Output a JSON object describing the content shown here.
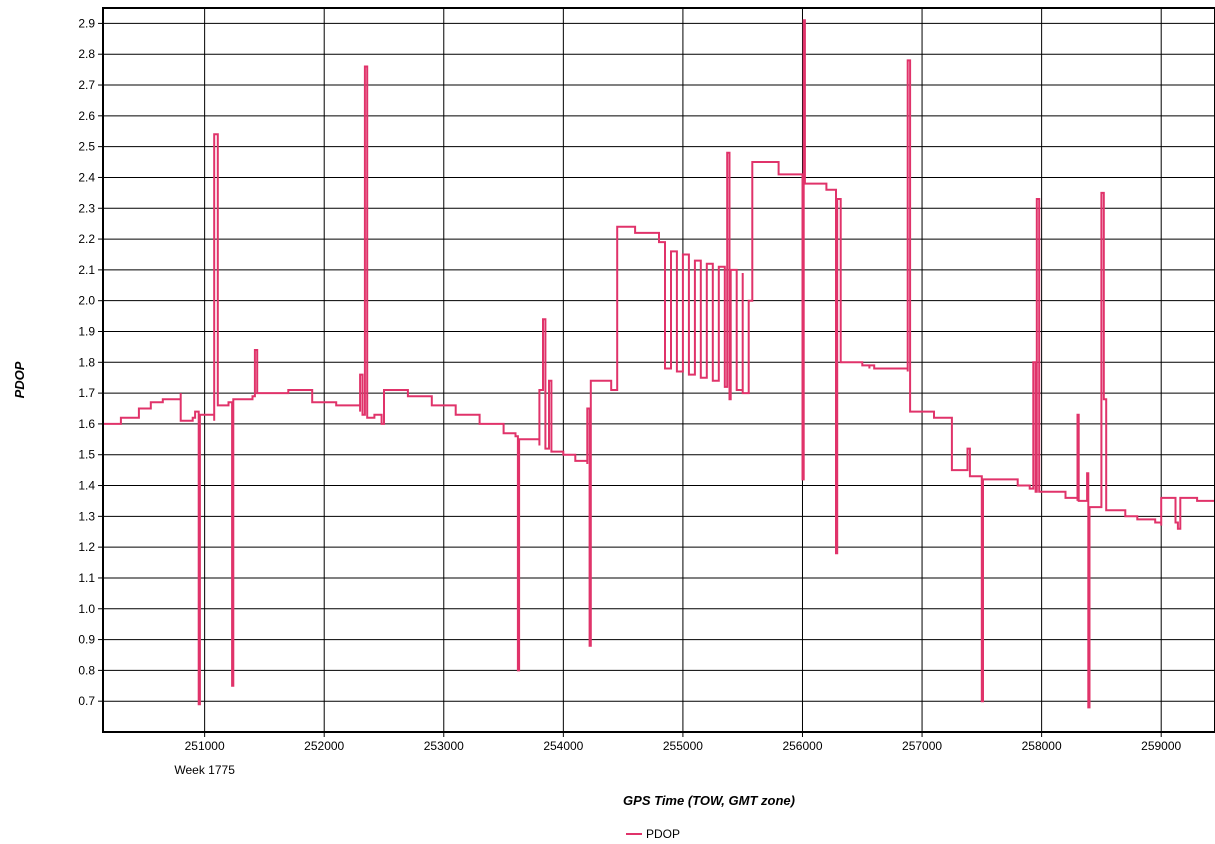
{
  "chart_data": {
    "type": "line",
    "xlabel": "GPS Time (TOW, GMT zone)",
    "ylabel": "PDOP",
    "week_label": "Week 1775",
    "xlim": [
      250150,
      259450
    ],
    "ylim": [
      0.6,
      2.95
    ],
    "x_ticks": [
      251000,
      252000,
      253000,
      254000,
      255000,
      256000,
      257000,
      258000,
      259000
    ],
    "y_ticks": [
      0.7,
      0.8,
      0.9,
      1.0,
      1.1,
      1.2,
      1.3,
      1.4,
      1.5,
      1.6,
      1.7,
      1.8,
      1.9,
      2.0,
      2.1,
      2.2,
      2.3,
      2.4,
      2.5,
      2.6,
      2.7,
      2.8,
      2.9
    ],
    "y_tick_labels": [
      "0.7",
      "0.8",
      "0.9",
      "1.0",
      "1.1",
      "1.2",
      "1.3",
      "1.4",
      "1.5",
      "1.6",
      "1.7",
      "1.8",
      "1.9",
      "2.0",
      "2.1",
      "2.2",
      "2.3",
      "2.4",
      "2.5",
      "2.6",
      "2.7",
      "2.8",
      "2.9"
    ],
    "grid": true,
    "legend_position": "bottom-center",
    "series": [
      {
        "name": "PDOP",
        "color": "#e0336a",
        "step": true,
        "points": [
          [
            250150,
            1.6
          ],
          [
            250300,
            1.62
          ],
          [
            250450,
            1.65
          ],
          [
            250550,
            1.67
          ],
          [
            250650,
            1.68
          ],
          [
            250800,
            1.7
          ],
          [
            250800,
            1.61
          ],
          [
            250900,
            1.62
          ],
          [
            250920,
            1.64
          ],
          [
            250950,
            1.64
          ],
          [
            250950,
            0.69
          ],
          [
            250960,
            0.69
          ],
          [
            250960,
            1.63
          ],
          [
            251050,
            1.63
          ],
          [
            251080,
            1.61
          ],
          [
            251080,
            2.54
          ],
          [
            251110,
            2.54
          ],
          [
            251110,
            1.66
          ],
          [
            251200,
            1.67
          ],
          [
            251230,
            1.67
          ],
          [
            251230,
            0.75
          ],
          [
            251240,
            0.75
          ],
          [
            251240,
            1.68
          ],
          [
            251400,
            1.69
          ],
          [
            251420,
            1.69
          ],
          [
            251420,
            1.84
          ],
          [
            251440,
            1.84
          ],
          [
            251440,
            1.7
          ],
          [
            251700,
            1.71
          ],
          [
            251900,
            1.71
          ],
          [
            251900,
            1.67
          ],
          [
            252100,
            1.66
          ],
          [
            252300,
            1.64
          ],
          [
            252300,
            1.76
          ],
          [
            252320,
            1.76
          ],
          [
            252320,
            1.63
          ],
          [
            252340,
            1.63
          ],
          [
            252340,
            2.76
          ],
          [
            252360,
            2.76
          ],
          [
            252360,
            1.62
          ],
          [
            252420,
            1.62
          ],
          [
            252420,
            1.63
          ],
          [
            252480,
            1.62
          ],
          [
            252480,
            1.6
          ],
          [
            252500,
            1.6
          ],
          [
            252500,
            1.71
          ],
          [
            252700,
            1.69
          ],
          [
            252900,
            1.66
          ],
          [
            253100,
            1.63
          ],
          [
            253300,
            1.6
          ],
          [
            253500,
            1.57
          ],
          [
            253600,
            1.56
          ],
          [
            253620,
            1.55
          ],
          [
            253620,
            0.8
          ],
          [
            253630,
            0.8
          ],
          [
            253630,
            1.55
          ],
          [
            253800,
            1.53
          ],
          [
            253800,
            1.71
          ],
          [
            253830,
            1.71
          ],
          [
            253830,
            1.94
          ],
          [
            253850,
            1.94
          ],
          [
            253850,
            1.52
          ],
          [
            253880,
            1.52
          ],
          [
            253880,
            1.74
          ],
          [
            253900,
            1.74
          ],
          [
            253900,
            1.51
          ],
          [
            254000,
            1.5
          ],
          [
            254100,
            1.48
          ],
          [
            254200,
            1.47
          ],
          [
            254200,
            1.65
          ],
          [
            254220,
            1.65
          ],
          [
            254220,
            0.88
          ],
          [
            254230,
            0.88
          ],
          [
            254230,
            1.74
          ],
          [
            254400,
            1.74
          ],
          [
            254400,
            1.71
          ],
          [
            254450,
            1.71
          ],
          [
            254450,
            2.24
          ],
          [
            254600,
            2.22
          ],
          [
            254800,
            2.19
          ],
          [
            254850,
            2.18
          ],
          [
            254850,
            1.78
          ],
          [
            254900,
            2.16
          ],
          [
            254950,
            1.77
          ],
          [
            255000,
            2.15
          ],
          [
            255050,
            1.76
          ],
          [
            255100,
            2.13
          ],
          [
            255150,
            1.75
          ],
          [
            255200,
            2.12
          ],
          [
            255250,
            1.74
          ],
          [
            255300,
            2.11
          ],
          [
            255350,
            1.72
          ],
          [
            255370,
            1.72
          ],
          [
            255370,
            2.48
          ],
          [
            255390,
            2.48
          ],
          [
            255390,
            1.68
          ],
          [
            255400,
            1.68
          ],
          [
            255400,
            2.1
          ],
          [
            255450,
            1.71
          ],
          [
            255500,
            2.09
          ],
          [
            255500,
            1.7
          ],
          [
            255550,
            1.7
          ],
          [
            255550,
            2.0
          ],
          [
            255580,
            2.0
          ],
          [
            255580,
            2.45
          ],
          [
            255800,
            2.41
          ],
          [
            256000,
            2.38
          ],
          [
            256000,
            1.42
          ],
          [
            256010,
            1.42
          ],
          [
            256010,
            2.91
          ],
          [
            256020,
            2.91
          ],
          [
            256020,
            2.38
          ],
          [
            256200,
            2.36
          ],
          [
            256280,
            2.34
          ],
          [
            256280,
            1.18
          ],
          [
            256290,
            1.18
          ],
          [
            256290,
            2.33
          ],
          [
            256320,
            2.33
          ],
          [
            256320,
            1.8
          ],
          [
            256500,
            1.79
          ],
          [
            256560,
            1.78
          ],
          [
            256560,
            1.79
          ],
          [
            256600,
            1.79
          ],
          [
            256600,
            1.78
          ],
          [
            256880,
            1.77
          ],
          [
            256880,
            2.78
          ],
          [
            256900,
            2.78
          ],
          [
            256900,
            1.64
          ],
          [
            257100,
            1.62
          ],
          [
            257250,
            1.6
          ],
          [
            257250,
            1.45
          ],
          [
            257380,
            1.45
          ],
          [
            257380,
            1.52
          ],
          [
            257400,
            1.52
          ],
          [
            257400,
            1.43
          ],
          [
            257500,
            1.43
          ],
          [
            257500,
            0.7
          ],
          [
            257510,
            0.7
          ],
          [
            257510,
            1.42
          ],
          [
            257800,
            1.4
          ],
          [
            257900,
            1.39
          ],
          [
            257930,
            1.8
          ],
          [
            257950,
            1.38
          ],
          [
            257960,
            2.33
          ],
          [
            257980,
            2.33
          ],
          [
            257980,
            1.38
          ],
          [
            258200,
            1.36
          ],
          [
            258300,
            1.35
          ],
          [
            258300,
            1.63
          ],
          [
            258310,
            1.63
          ],
          [
            258310,
            1.35
          ],
          [
            258380,
            1.35
          ],
          [
            258380,
            1.44
          ],
          [
            258390,
            1.44
          ],
          [
            258390,
            0.68
          ],
          [
            258400,
            0.68
          ],
          [
            258400,
            1.33
          ],
          [
            258500,
            1.33
          ],
          [
            258500,
            2.35
          ],
          [
            258520,
            2.35
          ],
          [
            258520,
            1.68
          ],
          [
            258540,
            1.68
          ],
          [
            258540,
            1.32
          ],
          [
            258700,
            1.3
          ],
          [
            258800,
            1.29
          ],
          [
            258950,
            1.28
          ],
          [
            259000,
            1.27
          ],
          [
            259000,
            1.36
          ],
          [
            259120,
            1.36
          ],
          [
            259120,
            1.28
          ],
          [
            259140,
            1.28
          ],
          [
            259140,
            1.26
          ],
          [
            259160,
            1.26
          ],
          [
            259160,
            1.36
          ],
          [
            259300,
            1.35
          ],
          [
            259450,
            1.35
          ]
        ]
      }
    ]
  }
}
